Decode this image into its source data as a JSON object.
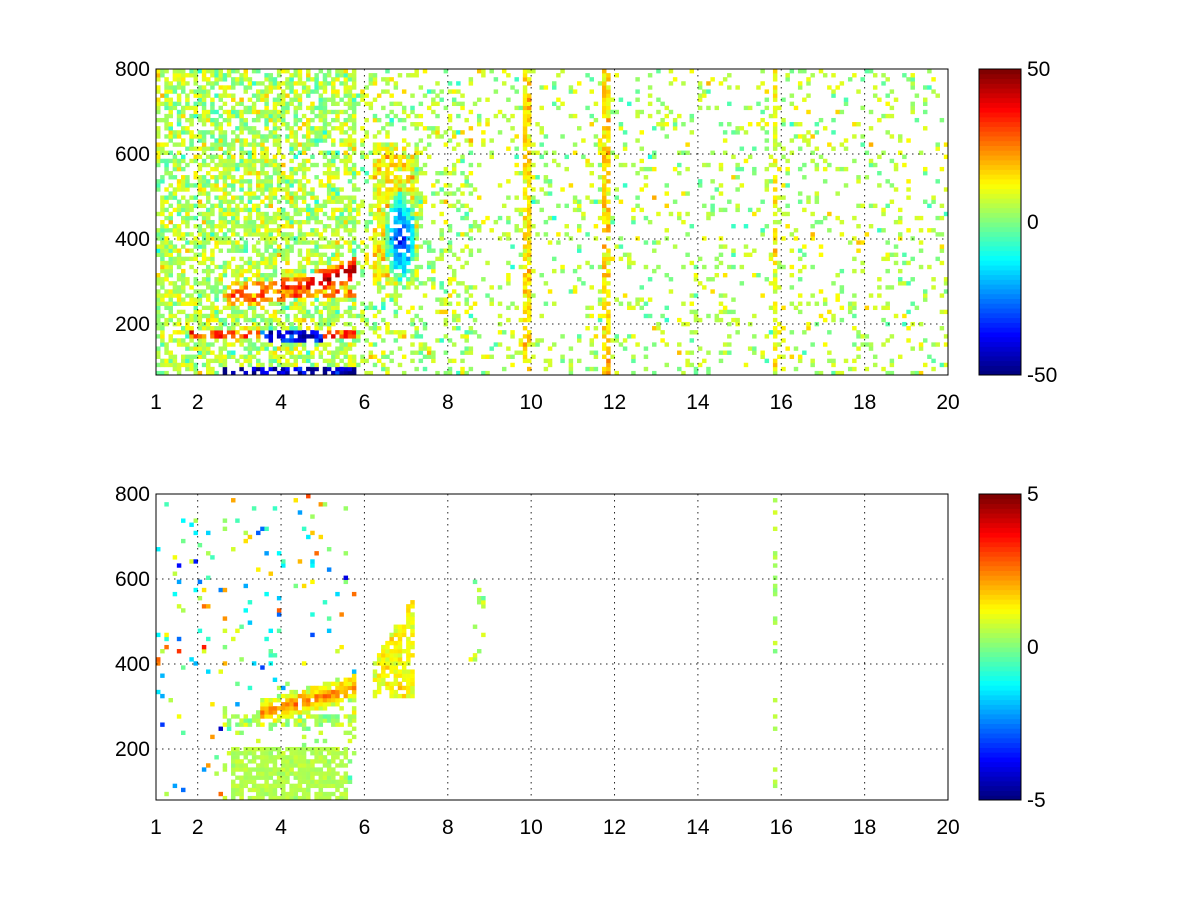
{
  "figure": {
    "background": "#ffffff",
    "colormap": "jet"
  },
  "chart_data": [
    {
      "type": "heatmap",
      "title": "",
      "xlabel": "",
      "ylabel": "",
      "xlim": [
        1,
        20
      ],
      "ylim": [
        80,
        800
      ],
      "grid": true,
      "xticks": [
        1,
        2,
        4,
        6,
        8,
        10,
        12,
        14,
        16,
        18,
        20
      ],
      "yticks": [
        200,
        400,
        600,
        800
      ],
      "xtick_labels": [
        "1",
        "2",
        "4",
        "6",
        "8",
        "10",
        "12",
        "14",
        "16",
        "18",
        "20"
      ],
      "ytick_labels": [
        "200",
        "400",
        "600",
        "800"
      ],
      "clim": [
        -50,
        50
      ],
      "colorbar_ticks": [
        -50,
        0,
        50
      ],
      "colorbar_labels": [
        "-50",
        "0",
        "50"
      ],
      "features": {
        "dense_region_x": [
          1,
          5.8
        ],
        "ridge": {
          "x": [
            2.7,
            5.8
          ],
          "y": [
            270,
            330
          ],
          "value": 40
        },
        "bands": [
          {
            "y": 270,
            "x": [
              2.7,
              5.8
            ],
            "value": 25
          },
          {
            "y": 175,
            "x": [
              1.8,
              5.8
            ],
            "value": 30
          },
          {
            "y": 170,
            "x": [
              3.5,
              5.0
            ],
            "value": -40
          },
          {
            "y": 88,
            "x": [
              2.5,
              5.8
            ],
            "value": -45
          }
        ],
        "cluster": {
          "x": [
            6.2,
            7.2
          ],
          "y": [
            290,
            620
          ],
          "core_value": -40
        },
        "vertical_lines": [
          {
            "x": 9.9,
            "value": 15
          },
          {
            "x": 11.8,
            "value": 15
          },
          {
            "x": 15.85,
            "value": 12
          }
        ]
      }
    },
    {
      "type": "heatmap",
      "title": "",
      "xlabel": "",
      "ylabel": "",
      "xlim": [
        1,
        20
      ],
      "ylim": [
        80,
        800
      ],
      "grid": true,
      "xticks": [
        1,
        2,
        4,
        6,
        8,
        10,
        12,
        14,
        16,
        18,
        20
      ],
      "yticks": [
        200,
        400,
        600,
        800
      ],
      "xtick_labels": [
        "1",
        "2",
        "4",
        "6",
        "8",
        "10",
        "12",
        "14",
        "16",
        "18",
        "20"
      ],
      "ytick_labels": [
        "200",
        "400",
        "600",
        "800"
      ],
      "clim": [
        -5,
        5
      ],
      "colorbar_ticks": [
        -5,
        0,
        5
      ],
      "colorbar_labels": [
        "-5",
        "0",
        "5"
      ],
      "features": {
        "dense_region_x": [
          2.5,
          5.8
        ],
        "ridge": {
          "x": [
            3.5,
            5.8
          ],
          "y": [
            285,
            345
          ],
          "value": 2.5
        },
        "low_block": {
          "x": [
            2.8,
            5.6
          ],
          "y": [
            80,
            200
          ],
          "value": 0.5
        },
        "cluster": {
          "x": [
            6.2,
            7.2
          ],
          "y": [
            320,
            560
          ],
          "core_value": 1.5
        },
        "vertical_lines": [
          {
            "x": 15.85,
            "value": 0.5
          }
        ]
      }
    }
  ]
}
